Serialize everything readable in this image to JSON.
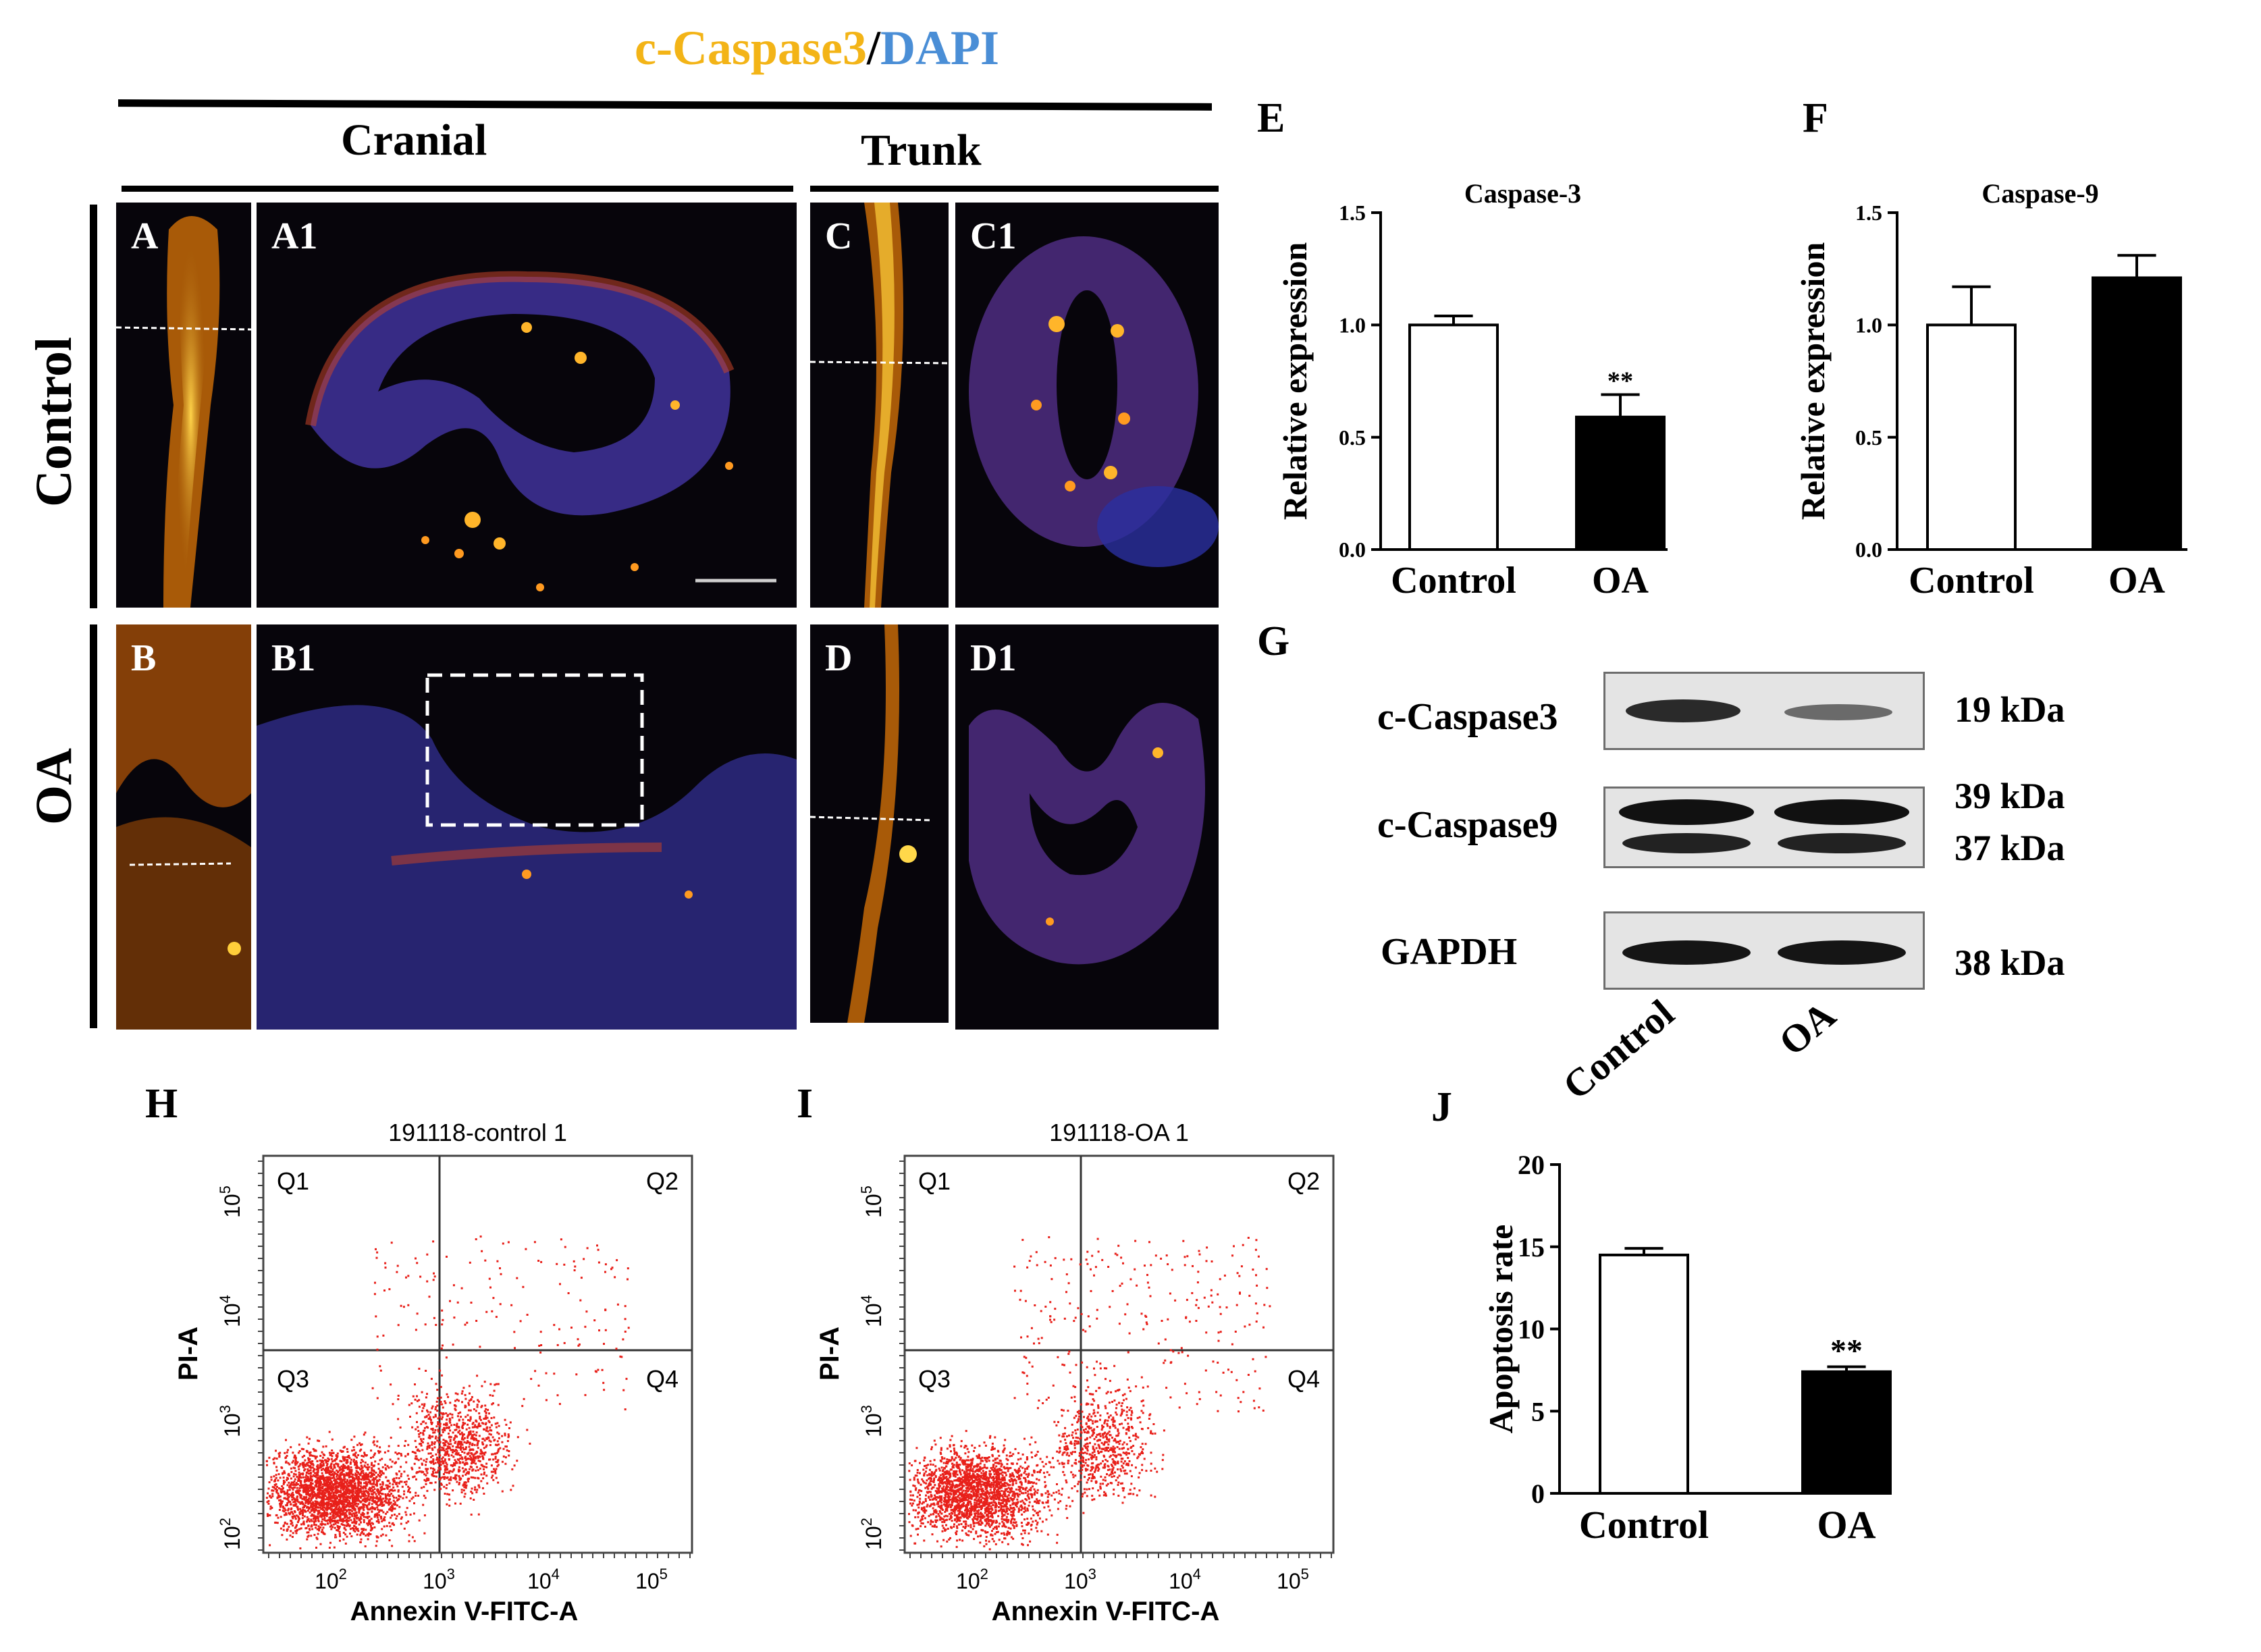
{
  "title": {
    "part1": "c-Caspase3",
    "sep": "/",
    "part2": "DAPI"
  },
  "sections": {
    "cranial": "Cranial",
    "trunk": "Trunk"
  },
  "rows": {
    "control": "Control",
    "oa": "OA"
  },
  "panels": {
    "A": "A",
    "A1": "A1",
    "C": "C",
    "C1": "C1",
    "B": "B",
    "B1": "B1",
    "D": "D",
    "D1": "D1"
  },
  "figure_letters": {
    "E": "E",
    "F": "F",
    "G": "G",
    "H": "H",
    "I": "I",
    "J": "J"
  },
  "western_blot": {
    "rows": [
      {
        "label": "c-Caspase3",
        "kda": [
          "19 kDa"
        ]
      },
      {
        "label": "c-Caspase9",
        "kda": [
          "39 kDa",
          "37 kDa"
        ]
      },
      {
        "label": "GAPDH",
        "kda": [
          "38 kDa"
        ]
      }
    ],
    "lanes": [
      "Control",
      "OA"
    ]
  },
  "flow": [
    {
      "title": "191118-control 1",
      "xlabel": "Annexin V-FITC-A",
      "ylabel": "PI-A",
      "quadrants": [
        "Q1",
        "Q2",
        "Q3",
        "Q4"
      ],
      "yticks": [
        "10",
        "10",
        "10",
        "10"
      ],
      "ytick_exp": [
        "5",
        "4",
        "3",
        "2"
      ],
      "xticks": [
        "10",
        "10",
        "10",
        "10"
      ],
      "xtick_exp": [
        "2",
        "3",
        "4",
        "5"
      ]
    },
    {
      "title": "191118-OA 1",
      "xlabel": "Annexin V-FITC-A",
      "ylabel": "PI-A",
      "quadrants": [
        "Q1",
        "Q2",
        "Q3",
        "Q4"
      ],
      "yticks": [
        "10",
        "10",
        "10",
        "10"
      ],
      "ytick_exp": [
        "5",
        "4",
        "3",
        "2"
      ],
      "xticks": [
        "10",
        "10",
        "10",
        "10"
      ],
      "xtick_exp": [
        "2",
        "3",
        "4",
        "5"
      ]
    }
  ],
  "colors": {
    "caspase": "#f3b417",
    "dapi": "#4a8ed6",
    "flow_dots": "#e8201a"
  },
  "chart_data": [
    {
      "type": "bar",
      "title": "Caspase-3",
      "ylabel": "Relative expression",
      "categories": [
        "Control",
        "OA"
      ],
      "values": [
        1.0,
        0.59
      ],
      "errors": [
        0.04,
        0.1
      ],
      "fills": [
        "#ffffff",
        "#000000"
      ],
      "significance": [
        "",
        "**"
      ],
      "ylim": [
        0,
        1.5
      ],
      "yticks": [
        "0.0",
        "0.5",
        "1.0",
        "1.5"
      ]
    },
    {
      "type": "bar",
      "title": "Caspase-9",
      "ylabel": "Relative expression",
      "categories": [
        "Control",
        "OA"
      ],
      "values": [
        1.0,
        1.21
      ],
      "errors": [
        0.17,
        0.1
      ],
      "fills": [
        "#ffffff",
        "#000000"
      ],
      "significance": [
        "",
        ""
      ],
      "ylim": [
        0,
        1.5
      ],
      "yticks": [
        "0.0",
        "0.5",
        "1.0",
        "1.5"
      ]
    },
    {
      "type": "bar",
      "title": "",
      "ylabel": "Apoptosis rate",
      "categories": [
        "Control",
        "OA"
      ],
      "values": [
        14.5,
        7.4
      ],
      "errors": [
        0.4,
        0.3
      ],
      "fills": [
        "#ffffff",
        "#000000"
      ],
      "significance": [
        "",
        "**"
      ],
      "ylim": [
        0,
        20
      ],
      "yticks": [
        "0",
        "5",
        "10",
        "15",
        "20"
      ]
    }
  ]
}
